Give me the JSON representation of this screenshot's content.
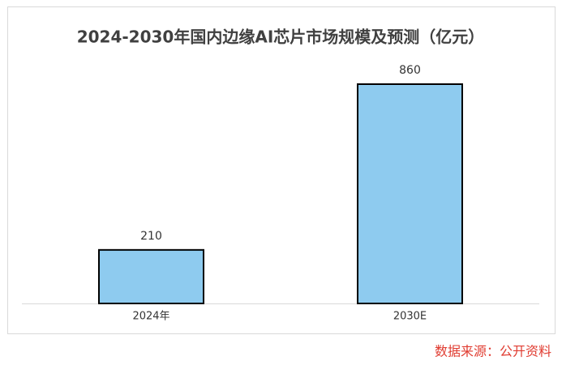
{
  "chart_data": {
    "type": "bar",
    "title": "2024-2030年国内边缘AI芯片市场规模及预测（亿元）",
    "categories": [
      "2024年",
      "2030E"
    ],
    "values": [
      210,
      860
    ],
    "color": "#8ecbef"
  },
  "source": "数据来源：公开资料"
}
